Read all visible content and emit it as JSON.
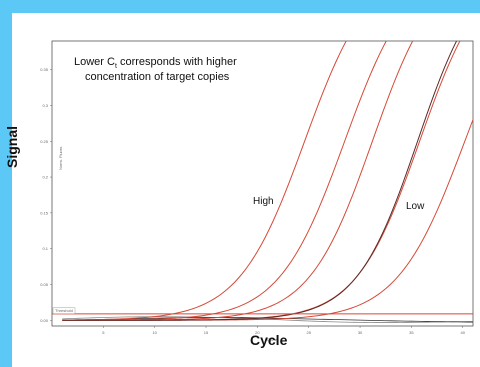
{
  "chart_data": {
    "type": "line",
    "ylabel": "Signal",
    "xlabel": "Cycle",
    "inner_ylabel": "Norm. Fluoro.",
    "inner_xlabel": "Cycle",
    "xlim": [
      0,
      41
    ],
    "ylim": [
      -0.008,
      0.39
    ],
    "x_ticks": [
      5,
      10,
      15,
      20,
      25,
      30,
      35,
      40
    ],
    "y_ticks": [
      0.0,
      0.05,
      0.1,
      0.15,
      0.2,
      0.25,
      0.3,
      0.35
    ],
    "y_tick_labels": [
      "0.00",
      "0.05",
      "0.1",
      "0.15",
      "0.2",
      "0.25",
      "0.3",
      "0.35"
    ],
    "threshold": {
      "label": "Threshold",
      "value": 0.009
    },
    "annotation_line1": "Lower C",
    "annotation_sub": "t",
    "annotation_line1_rest": " corresponds with higher",
    "annotation_line2": "concentration of target copies",
    "high_label": "High",
    "low_label": "Low",
    "series_color": "#d44a38",
    "dark_series_color": "#5a2a2a",
    "baseline_color": "#888888",
    "series": [
      {
        "midpoint": 24.6,
        "slope": 3.2,
        "ymax": 0.5
      },
      {
        "midpoint": 28.5,
        "slope": 3.2,
        "ymax": 0.5
      },
      {
        "midpoint": 31.2,
        "slope": 3.1,
        "ymax": 0.5
      },
      {
        "midpoint": 35.8,
        "slope": 3.1,
        "ymax": 0.5
      },
      {
        "midpoint": 40.2,
        "slope": 3.3,
        "ymax": 0.5
      }
    ],
    "dark_series": {
      "midpoint": 35.6,
      "slope": 3.0,
      "ymax": 0.5
    }
  }
}
